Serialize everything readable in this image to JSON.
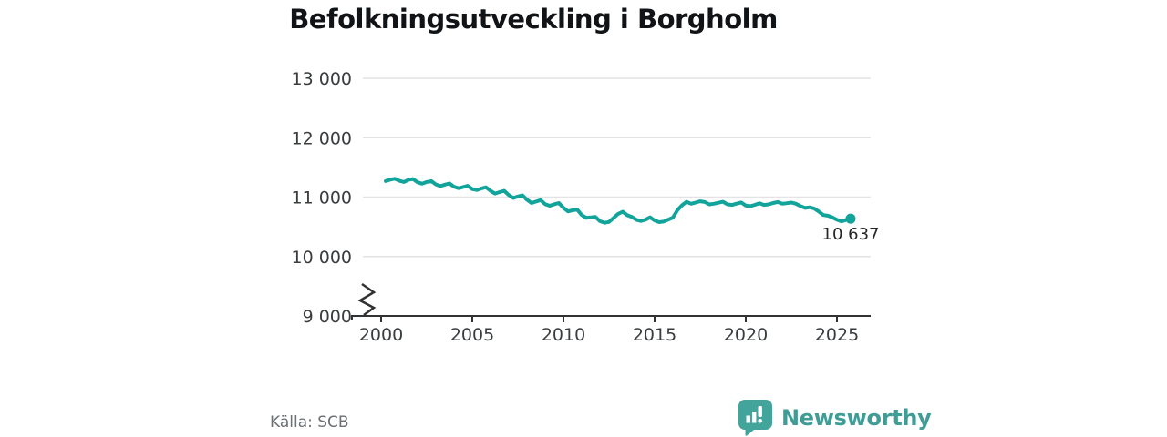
{
  "header": {
    "title": "Befolkningsutveckling i Borgholm"
  },
  "chart_data": {
    "type": "line",
    "title": "Befolkningsutveckling i Borgholm",
    "xlabel": "",
    "ylabel": "",
    "x_unit": "year (quarterly points)",
    "x_start": 2000.25,
    "x_step": 0.25,
    "values": [
      11270,
      11295,
      11310,
      11275,
      11255,
      11290,
      11305,
      11250,
      11225,
      11255,
      11270,
      11215,
      11185,
      11210,
      11230,
      11175,
      11150,
      11170,
      11190,
      11135,
      11120,
      11145,
      11165,
      11105,
      11060,
      11085,
      11105,
      11035,
      10985,
      11010,
      11030,
      10955,
      10900,
      10925,
      10950,
      10880,
      10855,
      10880,
      10900,
      10820,
      10760,
      10778,
      10792,
      10700,
      10650,
      10658,
      10668,
      10595,
      10570,
      10582,
      10650,
      10718,
      10755,
      10695,
      10668,
      10618,
      10598,
      10620,
      10660,
      10608,
      10578,
      10590,
      10622,
      10655,
      10780,
      10862,
      10920,
      10888,
      10908,
      10930,
      10918,
      10878,
      10888,
      10905,
      10922,
      10878,
      10868,
      10890,
      10910,
      10858,
      10848,
      10870,
      10898,
      10868,
      10878,
      10900,
      10918,
      10888,
      10898,
      10908,
      10888,
      10848,
      10818,
      10828,
      10808,
      10758,
      10698,
      10688,
      10658,
      10618,
      10592,
      10615,
      10637
    ],
    "end_point": {
      "label": "10 637",
      "value": 10637
    },
    "yticks": [
      {
        "label": "13 000",
        "value": 13000,
        "grid": true
      },
      {
        "label": "12 000",
        "value": 12000,
        "grid": true
      },
      {
        "label": "11 000",
        "value": 11000,
        "grid": true
      },
      {
        "label": "10 000",
        "value": 10000,
        "grid": true
      },
      {
        "label": "9 000",
        "value": 9000,
        "grid": false
      }
    ],
    "xticks": [
      {
        "label": "2000",
        "year": 2000
      },
      {
        "label": "2005",
        "year": 2005
      },
      {
        "label": "2010",
        "year": 2010
      },
      {
        "label": "2015",
        "year": 2015
      },
      {
        "label": "2020",
        "year": 2020
      },
      {
        "label": "2025",
        "year": 2025
      }
    ],
    "ylim": [
      9000,
      13000
    ],
    "axis_break": true,
    "grid": true,
    "legend": "none",
    "line_color": "#12a49b"
  },
  "footer": {
    "source": "Källa: SCB",
    "brand": "Newsworthy"
  },
  "colors": {
    "line": "#12a49b",
    "brand_teal": "#3f9d96",
    "grid": "#e3e3e6",
    "axis": "#303234",
    "title_text": "#111417",
    "muted_text": "#6b7075"
  }
}
